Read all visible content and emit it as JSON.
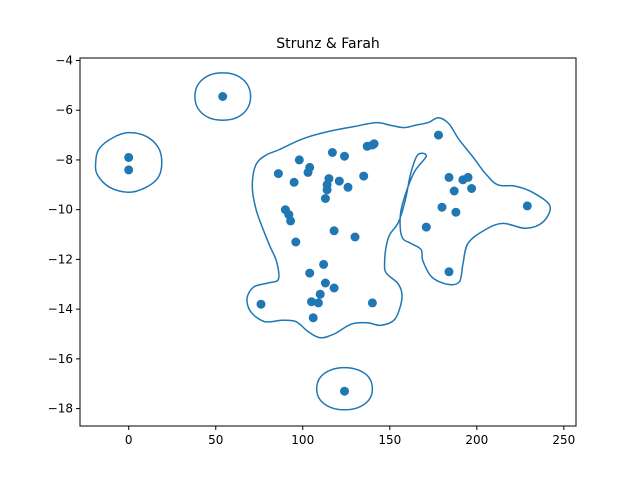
{
  "chart_data": {
    "type": "scatter",
    "title": "Strunz & Farah",
    "xlabel": "",
    "ylabel": "",
    "xlim": [
      -28,
      257
    ],
    "ylim": [
      -18.7,
      -3.9
    ],
    "grid": false,
    "colors": {
      "series": "#1f77b4",
      "axes": "#000000",
      "background": "#ffffff"
    },
    "x_ticks": [
      0,
      50,
      100,
      150,
      200,
      250
    ],
    "x_tick_labels": [
      "0",
      "50",
      "100",
      "150",
      "200",
      "250"
    ],
    "y_ticks": [
      -4,
      -6,
      -8,
      -10,
      -12,
      -14,
      -16,
      -18
    ],
    "y_tick_labels": [
      "−4",
      "−6",
      "−8",
      "−10",
      "−12",
      "−14",
      "−16",
      "−18"
    ],
    "series": [
      {
        "x": [
          0,
          0,
          54,
          76,
          86,
          90,
          92,
          93,
          95,
          96,
          98,
          103,
          104,
          104,
          105,
          106,
          109,
          110,
          112,
          113,
          113,
          114,
          114,
          115,
          117,
          118,
          118,
          121,
          124,
          124,
          126,
          130,
          135,
          137,
          140,
          140,
          141,
          171,
          178,
          180,
          184,
          184,
          187,
          188,
          192,
          195,
          197,
          229
        ],
        "y": [
          -7.9,
          -8.4,
          -5.45,
          -13.8,
          -8.55,
          -10.0,
          -10.2,
          -10.45,
          -8.9,
          -11.3,
          -8.0,
          -8.5,
          -12.55,
          -8.3,
          -13.7,
          -14.35,
          -13.75,
          -13.4,
          -12.2,
          -12.95,
          -9.55,
          -9.0,
          -9.2,
          -8.75,
          -7.7,
          -10.85,
          -13.15,
          -8.85,
          -17.3,
          -7.85,
          -9.1,
          -11.1,
          -8.65,
          -7.45,
          -7.4,
          -13.75,
          -7.35,
          -10.7,
          -7.0,
          -9.9,
          -8.7,
          -12.5,
          -9.25,
          -10.1,
          -8.8,
          -8.7,
          -9.15,
          -9.85
        ]
      }
    ],
    "contours": [
      {
        "name": "main-cluster",
        "points": [
          [
            86,
            -7.6
          ],
          [
            100,
            -7.15
          ],
          [
            115,
            -6.85
          ],
          [
            130,
            -6.65
          ],
          [
            142,
            -6.5
          ],
          [
            150,
            -6.6
          ],
          [
            158,
            -6.7
          ],
          [
            165,
            -6.6
          ],
          [
            172,
            -6.5
          ],
          [
            178,
            -6.3
          ],
          [
            184,
            -6.55
          ],
          [
            190,
            -7.2
          ],
          [
            198,
            -7.9
          ],
          [
            205,
            -8.55
          ],
          [
            212,
            -9.0
          ],
          [
            222,
            -9.05
          ],
          [
            232,
            -9.3
          ],
          [
            242,
            -9.85
          ],
          [
            238,
            -10.5
          ],
          [
            228,
            -10.75
          ],
          [
            215,
            -10.55
          ],
          [
            205,
            -10.8
          ],
          [
            195,
            -11.35
          ],
          [
            192,
            -12.2
          ],
          [
            190,
            -12.9
          ],
          [
            183,
            -13.0
          ],
          [
            174,
            -12.7
          ],
          [
            169,
            -12.05
          ],
          [
            168,
            -11.6
          ],
          [
            162,
            -11.35
          ],
          [
            157,
            -11.1
          ],
          [
            156,
            -10.3
          ],
          [
            158,
            -9.6
          ],
          [
            164,
            -8.5
          ],
          [
            171,
            -7.85
          ],
          [
            166,
            -7.8
          ],
          [
            162,
            -8.55
          ],
          [
            159,
            -9.6
          ],
          [
            155,
            -10.5
          ],
          [
            150,
            -11.0
          ],
          [
            148,
            -11.45
          ],
          [
            147,
            -12.15
          ],
          [
            148,
            -12.55
          ],
          [
            155,
            -13.0
          ],
          [
            157,
            -13.55
          ],
          [
            153,
            -14.4
          ],
          [
            145,
            -14.65
          ],
          [
            137,
            -14.55
          ],
          [
            128,
            -14.6
          ],
          [
            118,
            -15.0
          ],
          [
            110,
            -15.15
          ],
          [
            103,
            -14.9
          ],
          [
            96,
            -14.5
          ],
          [
            88,
            -14.45
          ],
          [
            78,
            -14.5
          ],
          [
            70,
            -14.1
          ],
          [
            68,
            -13.55
          ],
          [
            72,
            -13.1
          ],
          [
            80,
            -12.95
          ],
          [
            86,
            -12.8
          ],
          [
            85,
            -12.1
          ],
          [
            81,
            -11.45
          ],
          [
            77,
            -10.75
          ],
          [
            73,
            -9.95
          ],
          [
            71,
            -9.05
          ],
          [
            73,
            -8.2
          ],
          [
            79,
            -7.8
          ]
        ]
      },
      {
        "name": "left-cluster",
        "points": [
          [
            19,
            -8.1
          ],
          [
            17,
            -8.7
          ],
          [
            10,
            -9.1
          ],
          [
            0,
            -9.3
          ],
          [
            -11,
            -9.1
          ],
          [
            -18,
            -8.6
          ],
          [
            -19,
            -8.1
          ],
          [
            -17,
            -7.55
          ],
          [
            -9,
            -7.1
          ],
          [
            0,
            -6.9
          ],
          [
            10,
            -7.05
          ],
          [
            17,
            -7.5
          ]
        ]
      },
      {
        "name": "top-cluster",
        "points": [
          [
            70,
            -5.45
          ],
          [
            68,
            -5.95
          ],
          [
            62,
            -6.3
          ],
          [
            54,
            -6.4
          ],
          [
            46,
            -6.3
          ],
          [
            40,
            -5.95
          ],
          [
            38,
            -5.45
          ],
          [
            40,
            -4.95
          ],
          [
            46,
            -4.6
          ],
          [
            54,
            -4.5
          ],
          [
            62,
            -4.6
          ],
          [
            68,
            -4.95
          ]
        ]
      },
      {
        "name": "bottom-cluster",
        "points": [
          [
            140,
            -17.2
          ],
          [
            138,
            -17.65
          ],
          [
            132,
            -17.95
          ],
          [
            124,
            -18.05
          ],
          [
            116,
            -17.95
          ],
          [
            110,
            -17.65
          ],
          [
            108,
            -17.2
          ],
          [
            110,
            -16.75
          ],
          [
            116,
            -16.45
          ],
          [
            124,
            -16.35
          ],
          [
            132,
            -16.45
          ],
          [
            138,
            -16.75
          ]
        ]
      }
    ]
  }
}
